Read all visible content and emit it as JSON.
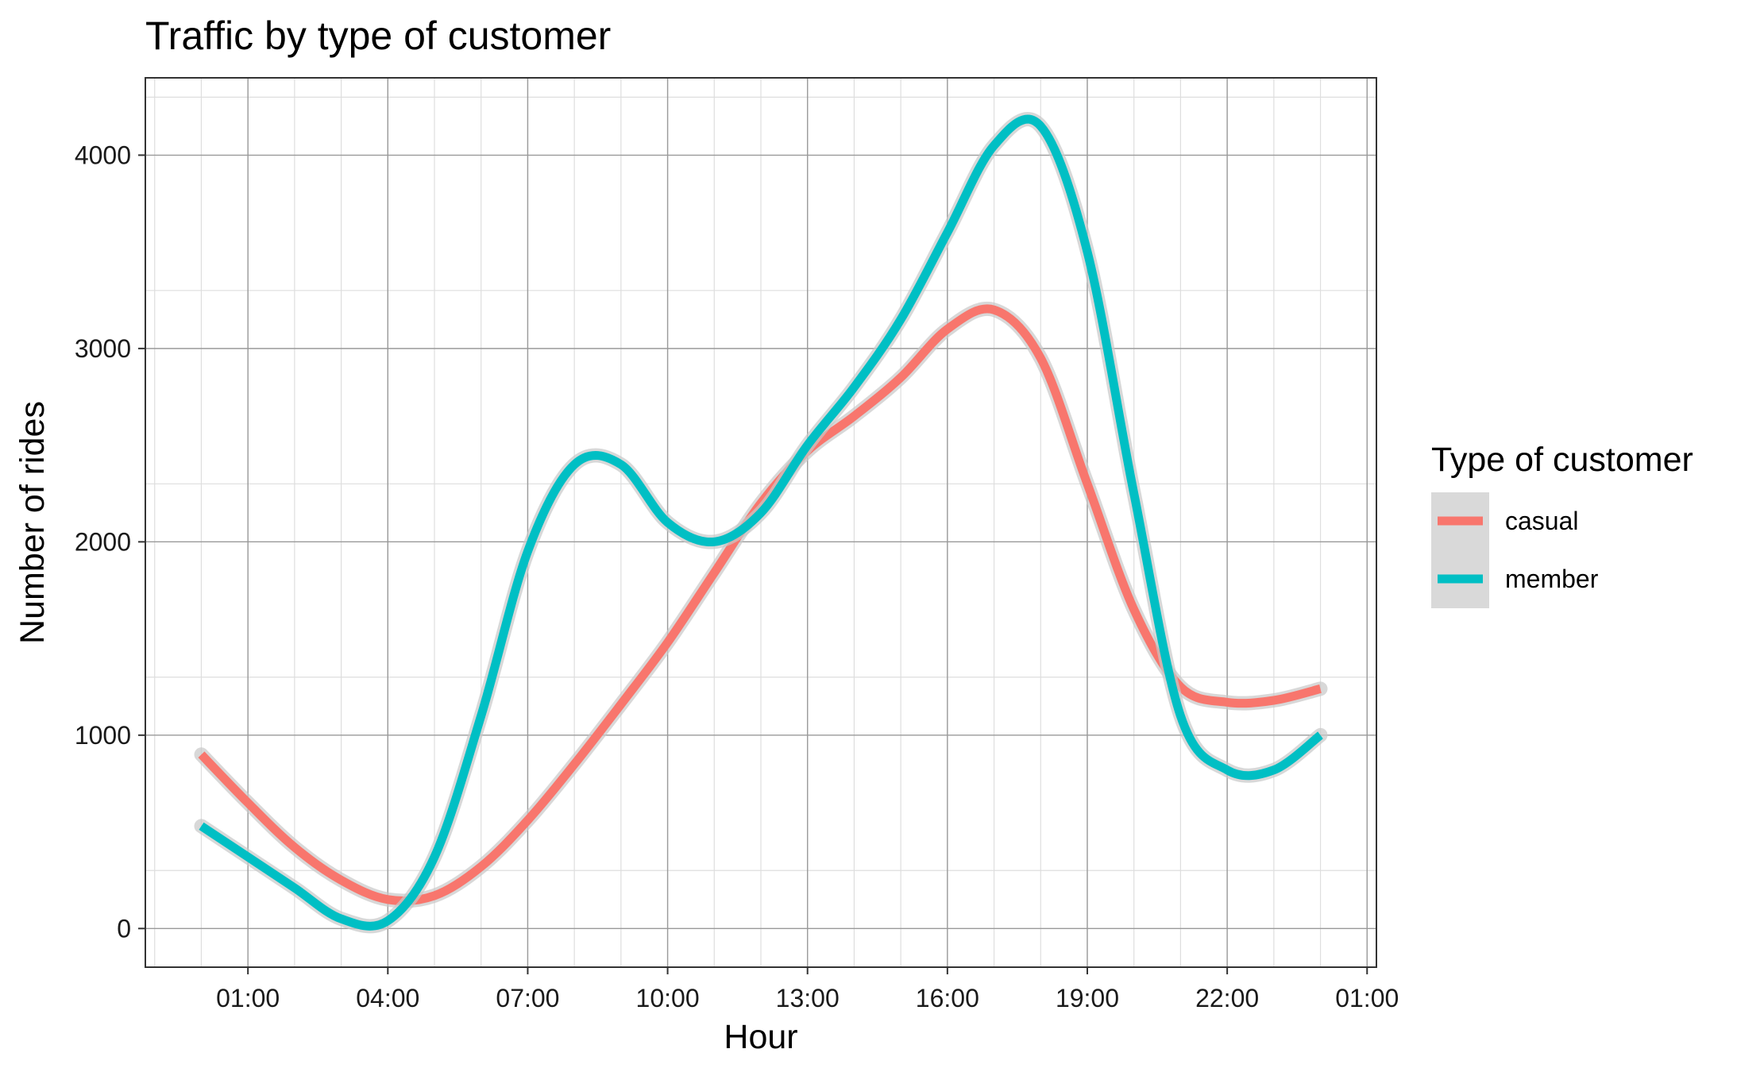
{
  "chart_data": {
    "type": "line",
    "title": "Traffic by type of customer",
    "xlabel": "Hour",
    "ylabel": "Number of rides",
    "x_tick_labels": [
      "01:00",
      "04:00",
      "07:00",
      "10:00",
      "13:00",
      "16:00",
      "19:00",
      "22:00",
      "01:00"
    ],
    "x_tick_hours": [
      1,
      4,
      7,
      10,
      13,
      16,
      19,
      22,
      25
    ],
    "xlim": [
      -1.2,
      25.2
    ],
    "y_ticks": [
      0,
      1000,
      2000,
      3000,
      4000
    ],
    "ylim": [
      -200,
      4400
    ],
    "grid": true,
    "legend": {
      "title": "Type of customer",
      "position": "right"
    },
    "series": [
      {
        "name": "casual",
        "color": "#F8766D",
        "x": [
          0,
          1,
          2,
          3,
          4,
          5,
          6,
          7,
          8,
          9,
          10,
          11,
          12,
          13,
          14,
          15,
          16,
          17,
          18,
          19,
          20,
          21,
          22,
          23,
          24
        ],
        "y": [
          900,
          650,
          420,
          250,
          150,
          170,
          320,
          560,
          850,
          1160,
          1480,
          1840,
          2200,
          2470,
          2650,
          2850,
          3100,
          3200,
          2950,
          2300,
          1650,
          1250,
          1170,
          1180,
          1240
        ]
      },
      {
        "name": "member",
        "color": "#00BFC4",
        "x": [
          0,
          1,
          2,
          3,
          4,
          5,
          6,
          7,
          8,
          9,
          10,
          11,
          12,
          13,
          14,
          15,
          16,
          17,
          18,
          19,
          20,
          21,
          22,
          23,
          24
        ],
        "y": [
          530,
          370,
          210,
          50,
          40,
          370,
          1100,
          1950,
          2400,
          2400,
          2100,
          2000,
          2150,
          2500,
          2800,
          3150,
          3600,
          4050,
          4150,
          3500,
          2250,
          1100,
          820,
          820,
          1000
        ]
      }
    ]
  }
}
